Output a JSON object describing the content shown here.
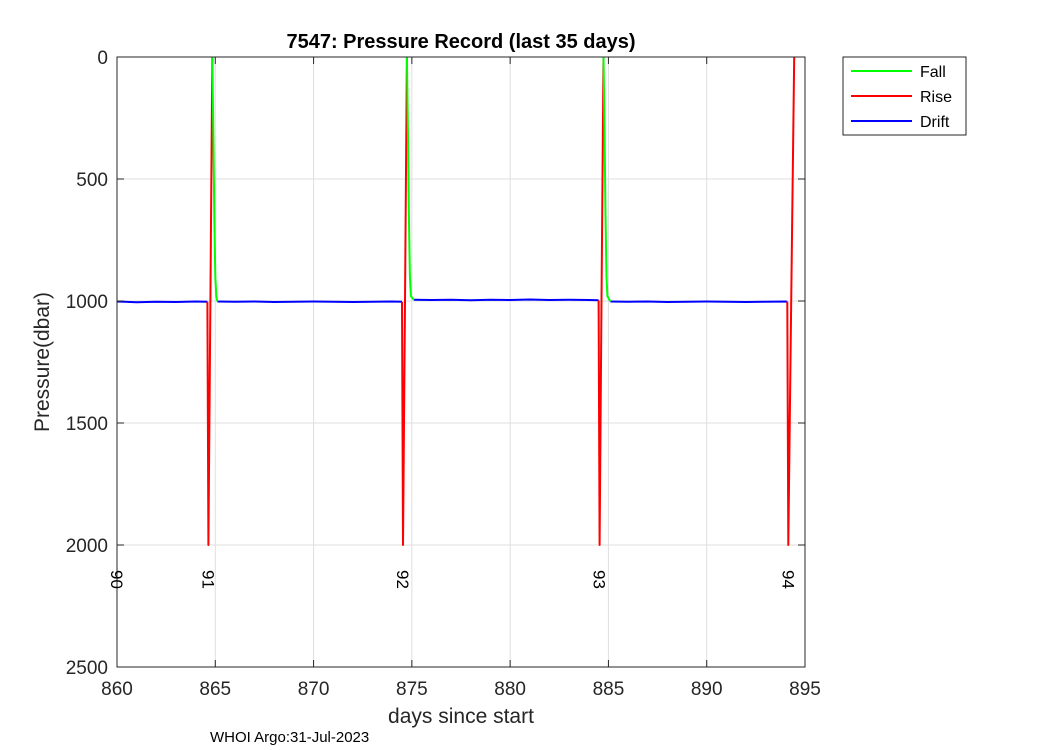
{
  "chart_data": {
    "type": "line",
    "title": "7547: Pressure Record (last 35 days)",
    "xlabel": "days since start",
    "ylabel": "Pressure(dbar)",
    "xlim": [
      860,
      895
    ],
    "ylim": [
      0,
      2500
    ],
    "y_reversed": true,
    "grid": true,
    "xticks": [
      860,
      865,
      870,
      875,
      880,
      885,
      890,
      895
    ],
    "yticks": [
      0,
      500,
      1000,
      1500,
      2000,
      2500
    ],
    "legend": {
      "position": "outside-top-right",
      "entries": [
        "Fall",
        "Rise",
        "Drift"
      ]
    },
    "series": [
      {
        "name": "Drift",
        "color": "#0000ff",
        "segments": [
          {
            "x": [
              860,
              861,
              862,
              863,
              864,
              864.6
            ],
            "y": [
              1002,
              1005,
              1003,
              1004,
              1002,
              1003
            ]
          },
          {
            "x": [
              865.1,
              866,
              867,
              868,
              869,
              870,
              871,
              872,
              873,
              874,
              874.5
            ],
            "y": [
              1002,
              1003,
              1002,
              1004,
              1003,
              1002,
              1003,
              1004,
              1003,
              1002,
              1003
            ]
          },
          {
            "x": [
              875.1,
              876,
              877,
              878,
              879,
              880,
              881,
              882,
              883,
              884,
              884.5
            ],
            "y": [
              995,
              996,
              995,
              997,
              995,
              996,
              994,
              996,
              995,
              996,
              997
            ]
          },
          {
            "x": [
              885.1,
              886,
              887,
              888,
              889,
              890,
              891,
              892,
              893,
              894,
              894.1
            ],
            "y": [
              1002,
              1003,
              1002,
              1004,
              1003,
              1002,
              1003,
              1004,
              1003,
              1002,
              1003
            ]
          }
        ]
      },
      {
        "name": "Rise",
        "color": "#ff0000",
        "segments": [
          {
            "x": [
              864.6,
              864.65,
              864.75,
              864.85
            ],
            "y": [
              1003,
              2000,
              1000,
              0
            ]
          },
          {
            "x": [
              874.5,
              874.55,
              874.65,
              874.75
            ],
            "y": [
              1003,
              2000,
              1000,
              0
            ]
          },
          {
            "x": [
              884.5,
              884.55,
              884.65,
              884.75
            ],
            "y": [
              997,
              2000,
              1000,
              0
            ]
          },
          {
            "x": [
              894.1,
              894.15,
              894.3,
              894.45
            ],
            "y": [
              1003,
              2000,
              1000,
              0
            ]
          }
        ]
      },
      {
        "name": "Fall",
        "color": "#00ff00",
        "segments": [
          {
            "x": [
              864.85,
              864.9,
              864.95,
              865.0,
              865.05,
              865.1
            ],
            "y": [
              0,
              300,
              650,
              900,
              980,
              1002
            ]
          },
          {
            "x": [
              874.75,
              874.8,
              874.85,
              874.9,
              874.95,
              875.1
            ],
            "y": [
              0,
              300,
              650,
              900,
              980,
              995
            ]
          },
          {
            "x": [
              884.75,
              884.8,
              884.85,
              884.9,
              884.95,
              885.1
            ],
            "y": [
              0,
              300,
              650,
              900,
              980,
              1002
            ]
          }
        ]
      }
    ],
    "cycle_labels": [
      {
        "text": "90",
        "x": 860
      },
      {
        "text": "91",
        "x": 864.65
      },
      {
        "text": "92",
        "x": 874.55
      },
      {
        "text": "93",
        "x": 884.55
      },
      {
        "text": "94",
        "x": 894.15
      }
    ]
  },
  "footer": "WHOI Argo:31-Jul-2023"
}
